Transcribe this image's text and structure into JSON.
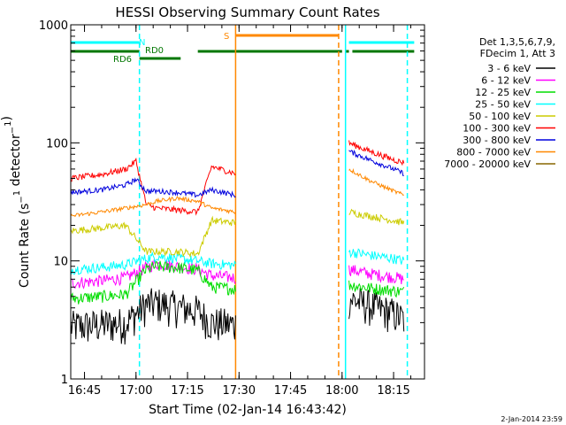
{
  "chart_data": {
    "type": "line",
    "title": "HESSI Observing Summary Count Rates",
    "xlabel": "Start Time (02-Jan-14 16:43:42)",
    "ylabel": "Count Rate (s⁻¹ detector⁻¹)",
    "yscale": "log",
    "ylim": [
      1,
      1000
    ],
    "xlim": [
      "16:41",
      "18:24"
    ],
    "x_ticks": [
      "16:45",
      "17:00",
      "17:15",
      "17:30",
      "17:45",
      "18:00",
      "18:15"
    ],
    "y_ticks": [
      "1",
      "10",
      "100",
      "1000"
    ],
    "grid": false,
    "legend_position": "right",
    "legend_header": [
      "Det 1,3,5,6,7,9,",
      "FDecim 1, Att 3"
    ],
    "series": [
      {
        "name": "3 - 6 keV",
        "color": "#000000",
        "x": [
          "16:41",
          "16:50",
          "16:57",
          "17:03",
          "17:06",
          "17:12",
          "17:18",
          "17:22",
          "17:29",
          "18:02",
          "18:08",
          "18:15",
          "18:18"
        ],
        "values": [
          2.8,
          2.9,
          3.0,
          4.3,
          4.4,
          4.1,
          3.8,
          3.0,
          2.9,
          4.8,
          4.2,
          3.6,
          3.2
        ]
      },
      {
        "name": "6 - 12 keV",
        "color": "#ff00ff",
        "x": [
          "16:41",
          "16:50",
          "16:57",
          "17:03",
          "17:06",
          "17:12",
          "17:18",
          "17:22",
          "17:29",
          "18:02",
          "18:08",
          "18:15",
          "18:18"
        ],
        "values": [
          6.5,
          6.8,
          7.2,
          8.8,
          9.5,
          9.0,
          8.5,
          7.5,
          7.2,
          8.5,
          7.8,
          7.3,
          7.0
        ]
      },
      {
        "name": "12 - 25 keV",
        "color": "#00dd00",
        "x": [
          "16:41",
          "16:50",
          "16:57",
          "17:03",
          "17:06",
          "17:12",
          "17:18",
          "17:22",
          "17:29",
          "18:02",
          "18:08",
          "18:15",
          "18:18"
        ],
        "values": [
          4.8,
          5.0,
          5.2,
          8.5,
          9.0,
          8.8,
          8.3,
          6.0,
          5.8,
          6.3,
          5.9,
          5.6,
          5.5
        ]
      },
      {
        "name": "25 - 50 keV",
        "color": "#00ffff",
        "x": [
          "16:41",
          "16:50",
          "16:57",
          "17:03",
          "17:06",
          "17:12",
          "17:18",
          "17:22",
          "17:29",
          "18:02",
          "18:08",
          "18:15",
          "18:18"
        ],
        "values": [
          8.5,
          8.8,
          9.3,
          10.5,
          11.0,
          10.5,
          10.0,
          9.5,
          9.2,
          12.0,
          11.2,
          10.5,
          10.0
        ]
      },
      {
        "name": "50 - 100 keV",
        "color": "#cccc00",
        "x": [
          "16:41",
          "16:50",
          "16:57",
          "17:03",
          "17:06",
          "17:12",
          "17:18",
          "17:22",
          "17:29",
          "18:02",
          "18:08",
          "18:15",
          "18:18"
        ],
        "values": [
          18,
          19,
          20,
          12,
          12,
          12,
          11.5,
          22,
          21,
          26,
          24,
          22,
          21
        ]
      },
      {
        "name": "100 - 300 keV",
        "color": "#ff0000",
        "x": [
          "16:41",
          "16:50",
          "16:57",
          "17:00",
          "17:03",
          "17:06",
          "17:12",
          "17:18",
          "17:22",
          "17:29",
          "18:02",
          "18:08",
          "18:15",
          "18:18"
        ],
        "values": [
          50,
          54,
          60,
          70,
          30,
          28,
          27,
          26,
          63,
          55,
          100,
          85,
          72,
          68
        ]
      },
      {
        "name": "300 - 800 keV",
        "color": "#0000dd",
        "x": [
          "16:41",
          "16:50",
          "16:57",
          "17:00",
          "17:03",
          "17:06",
          "17:12",
          "17:18",
          "17:22",
          "17:29",
          "18:02",
          "18:08",
          "18:15",
          "18:18"
        ],
        "values": [
          38,
          40,
          44,
          49,
          39,
          39,
          38,
          36,
          40,
          36,
          85,
          72,
          60,
          55
        ]
      },
      {
        "name": "800 - 7000 keV",
        "color": "#ff8800",
        "x": [
          "16:41",
          "16:50",
          "16:57",
          "17:03",
          "17:06",
          "17:12",
          "17:18",
          "17:22",
          "17:29",
          "18:02",
          "18:08",
          "18:15",
          "18:18"
        ],
        "values": [
          24,
          26,
          28,
          30,
          32,
          34,
          32,
          28,
          26,
          60,
          48,
          39,
          36
        ]
      },
      {
        "name": "7000 - 20000 keV",
        "color": "#886600",
        "x": [],
        "values": []
      }
    ],
    "annotations": [
      {
        "text": "N",
        "color": "#00ffff"
      },
      {
        "text": "RD0",
        "color": "#007700"
      },
      {
        "text": "RD6",
        "color": "#007700"
      },
      {
        "text": "S",
        "color": "#ff8800"
      }
    ],
    "flag_bars": [
      {
        "label": "N",
        "color": "#00ffff",
        "segments": [
          [
            "16:41",
            "17:01"
          ],
          [
            "18:02",
            "18:21"
          ]
        ]
      },
      {
        "label": "S",
        "color": "#ff8800",
        "segments": [
          [
            "17:29",
            "17:59"
          ]
        ]
      },
      {
        "label": "RD",
        "color": "#007700",
        "segments": [
          [
            "16:41",
            "17:01"
          ],
          [
            "17:18",
            "18:00"
          ],
          [
            "18:01",
            "18:02"
          ],
          [
            "18:03",
            "18:21"
          ]
        ]
      },
      {
        "label": "RD",
        "color": "#007700",
        "segments": [
          [
            "17:01",
            "17:13"
          ]
        ]
      }
    ],
    "vlines": [
      {
        "x": "17:01",
        "color": "#00ffff",
        "style": "dashed"
      },
      {
        "x": "18:19",
        "color": "#00ffff",
        "style": "dashed"
      },
      {
        "x": "17:29",
        "color": "#ff8800",
        "style": "solid"
      },
      {
        "x": "17:59",
        "color": "#ff8800",
        "style": "dashed"
      },
      {
        "x": "18:01",
        "color": "#00ffff",
        "style": "solid"
      }
    ],
    "data_gap": [
      "17:29",
      "18:00"
    ]
  },
  "footer": {
    "date_stamp": "2-Jan-2014 23:59"
  }
}
